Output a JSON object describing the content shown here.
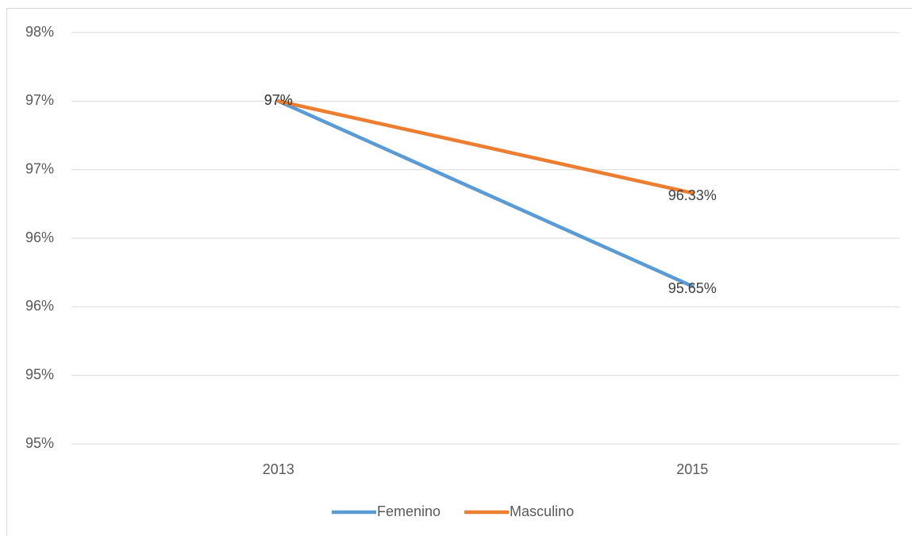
{
  "chart_data": {
    "type": "line",
    "categories": [
      "2013",
      "2015"
    ],
    "series": [
      {
        "name": "Femenino",
        "color": "#5b9bd5",
        "values": [
          97,
          95.65
        ],
        "value_labels": [
          "97%",
          "95.65%"
        ]
      },
      {
        "name": "Masculino",
        "color": "#ed7d31",
        "values": [
          97,
          96.33
        ],
        "value_labels": [
          "97%",
          "96.33%"
        ]
      }
    ],
    "ylim": [
      94.5,
      97.5
    ],
    "yticks": [
      {
        "value": 94.5,
        "label": "95%"
      },
      {
        "value": 95,
        "label": "95%"
      },
      {
        "value": 95.5,
        "label": "96%"
      },
      {
        "value": 96,
        "label": "96%"
      },
      {
        "value": 96.5,
        "label": "97%"
      },
      {
        "value": 97,
        "label": "97%"
      },
      {
        "value": 97.5,
        "label": "98%"
      }
    ],
    "grid": true,
    "legend": "bottom"
  }
}
